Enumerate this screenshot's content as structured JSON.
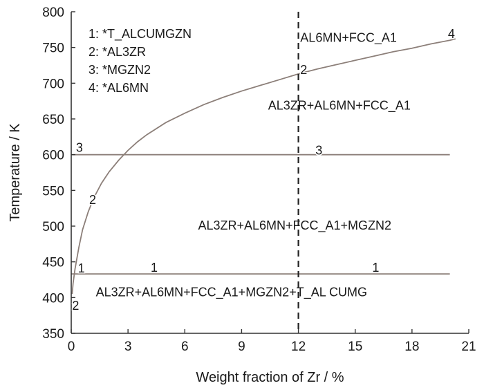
{
  "chart_data": {
    "type": "line",
    "xlabel": "Weight fraction of Zr / %",
    "ylabel": "Temperature / K",
    "xlim": [
      0,
      21
    ],
    "ylim": [
      350,
      800
    ],
    "xticks": [
      0,
      3,
      6,
      9,
      12,
      15,
      18,
      21
    ],
    "yticks": [
      350,
      400,
      450,
      500,
      550,
      600,
      650,
      700,
      750,
      800
    ],
    "grid": false,
    "legend": [
      "1: *T_ALCUMGZN",
      "2: *AL3ZR",
      "3: *MGZN2",
      "4: *AL6MN"
    ],
    "vertical_line": {
      "x": 12,
      "style": "dashed"
    },
    "series": [
      {
        "points": [
          [
            0.05,
            405
          ],
          [
            0.1,
            420
          ],
          [
            0.2,
            440
          ],
          [
            0.4,
            470
          ],
          [
            0.6,
            495
          ],
          [
            0.9,
            520
          ],
          [
            1.2,
            540
          ],
          [
            1.6,
            560
          ],
          [
            2.0,
            576
          ],
          [
            2.5,
            592
          ],
          [
            3.0,
            606
          ],
          [
            3.5,
            618
          ],
          [
            4.0,
            628
          ],
          [
            5.0,
            645
          ],
          [
            6.0,
            658
          ],
          [
            7.0,
            670
          ],
          [
            8.0,
            680
          ],
          [
            9.0,
            689
          ],
          [
            10.0,
            697
          ],
          [
            11.0,
            705
          ],
          [
            12.0,
            713
          ],
          [
            13.0,
            720
          ],
          [
            14.0,
            726
          ],
          [
            15.0,
            732
          ],
          [
            16.0,
            738
          ],
          [
            17.0,
            744
          ],
          [
            18.0,
            749
          ],
          [
            19.0,
            755
          ],
          [
            20.0,
            760
          ],
          [
            20.3,
            762
          ]
        ]
      },
      {
        "points": [
          [
            0,
            600
          ],
          [
            20,
            600
          ]
        ]
      },
      {
        "points": [
          [
            0,
            433
          ],
          [
            20,
            433
          ]
        ]
      }
    ],
    "region_labels": [
      {
        "text": "AL6MN+FCC_A1",
        "x": 12.1,
        "y": 758
      },
      {
        "text": "AL3ZR+AL6MN+FCC_A1",
        "x": 10.4,
        "y": 663
      },
      {
        "text": "AL3ZR+AL6MN+FCC_A1+MGZN2",
        "x": 6.7,
        "y": 495
      },
      {
        "text": "AL3ZR+AL6MN+FCC_A1+MGZN2+T_AL CUMG",
        "x": 1.3,
        "y": 402
      }
    ],
    "curve_labels": [
      {
        "text": "4",
        "x": 19.9,
        "y": 763
      },
      {
        "text": "2",
        "x": 12.1,
        "y": 713
      },
      {
        "text": "3",
        "x": 0.25,
        "y": 604
      },
      {
        "text": "3",
        "x": 12.9,
        "y": 600
      },
      {
        "text": "2",
        "x": 0.95,
        "y": 531
      },
      {
        "text": "1",
        "x": 0.35,
        "y": 435
      },
      {
        "text": "1",
        "x": 4.2,
        "y": 436
      },
      {
        "text": "1",
        "x": 15.9,
        "y": 436
      },
      {
        "text": "2",
        "x": 0.05,
        "y": 383
      }
    ]
  }
}
